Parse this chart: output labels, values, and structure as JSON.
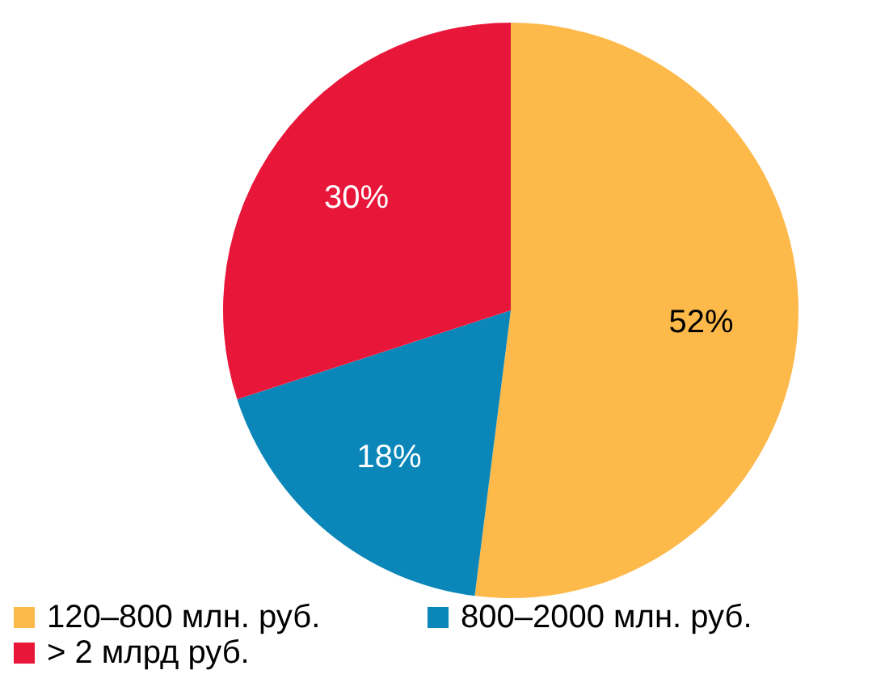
{
  "chart_data": {
    "type": "pie",
    "categories": [
      "120–800 млн. руб.",
      "800–2000 млн. руб.",
      "> 2 млрд руб."
    ],
    "values": [
      52,
      18,
      30
    ],
    "colors": [
      "#fdb94a",
      "#0a86b8",
      "#e8173a"
    ],
    "value_labels": [
      "52%",
      "18%",
      "30%"
    ],
    "legend": "bottom"
  }
}
